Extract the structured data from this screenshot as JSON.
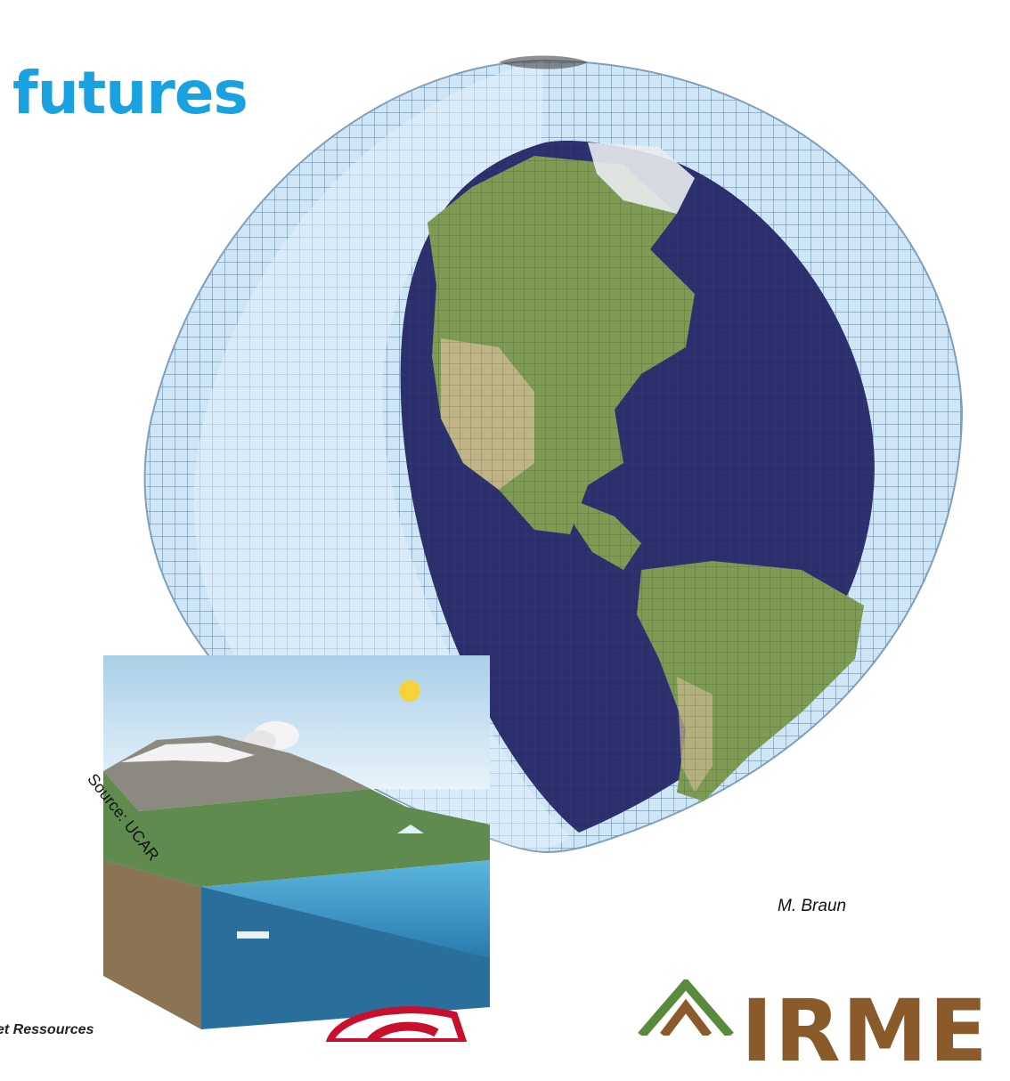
{
  "slide": {
    "title_fragment": "futures",
    "photo_credit": "M. Braun",
    "source_label": "Source: UCAR",
    "footer_left_text": "et Ressources",
    "logo_right_text": "IRME"
  },
  "colors": {
    "title": "#1aa1e0",
    "ocean": "#2b2f6b",
    "atmosphere_shell": "#cfe6f7",
    "land": "#7e9b53",
    "logo_red": "#c8102e",
    "logo_brown": "#8a5a2b",
    "logo_green": "#5a8a3c"
  }
}
